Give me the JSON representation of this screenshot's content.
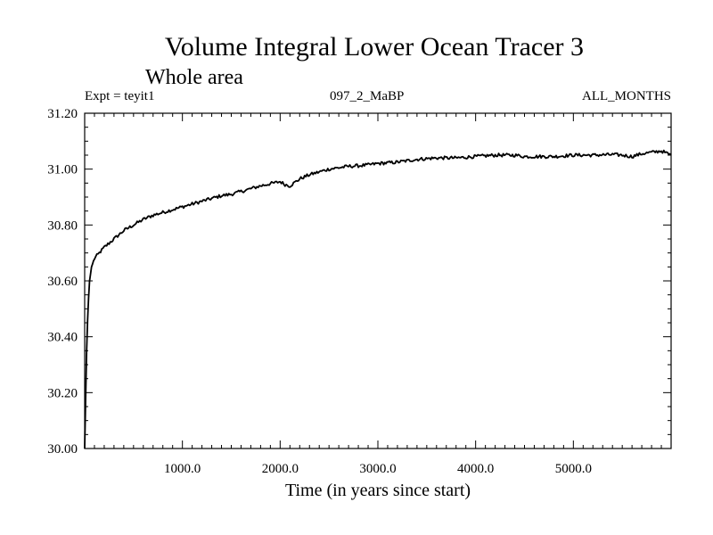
{
  "chart_data": {
    "type": "line",
    "title": "Volume Integral Lower Ocean Tracer 3",
    "subtitle": "Whole area",
    "experiment_label": "Expt = teyit1",
    "run_label": "097_2_MaBP",
    "period_label": "ALL_MONTHS",
    "xlabel": "Time (in years since start)",
    "ylabel": "",
    "xlim": [
      0,
      6000
    ],
    "ylim": [
      30.0,
      31.2
    ],
    "x_ticks": [
      1000,
      2000,
      3000,
      4000,
      5000
    ],
    "x_tick_labels": [
      "1000.0",
      "2000.0",
      "3000.0",
      "4000.0",
      "5000.0"
    ],
    "y_ticks": [
      30.0,
      30.2,
      30.4,
      30.6,
      30.8,
      31.0,
      31.2
    ],
    "y_tick_labels": [
      "30.00",
      "30.20",
      "30.40",
      "30.60",
      "30.80",
      "31.00",
      "31.20"
    ],
    "grid": false,
    "series": [
      {
        "name": "teyit1",
        "color": "#000000",
        "x": [
          0,
          10,
          20,
          30,
          40,
          50,
          70,
          100,
          150,
          200,
          300,
          400,
          500,
          600,
          700,
          800,
          900,
          1000,
          1100,
          1200,
          1300,
          1400,
          1500,
          1600,
          1700,
          1800,
          1900,
          2000,
          2050,
          2100,
          2200,
          2300,
          2400,
          2500,
          2600,
          2700,
          2800,
          2900,
          3000,
          3200,
          3400,
          3600,
          3800,
          4000,
          4200,
          4400,
          4500,
          4600,
          4800,
          5000,
          5200,
          5400,
          5500,
          5600,
          5700,
          5800,
          5900,
          6000
        ],
        "values": [
          30.0,
          30.18,
          30.35,
          30.46,
          30.54,
          30.6,
          30.65,
          30.68,
          30.7,
          30.72,
          30.75,
          30.78,
          30.8,
          30.82,
          30.835,
          30.845,
          30.855,
          30.865,
          30.875,
          30.885,
          30.895,
          30.905,
          30.91,
          30.92,
          30.93,
          30.94,
          30.948,
          30.955,
          30.945,
          30.94,
          30.965,
          30.98,
          30.99,
          31.0,
          31.005,
          31.01,
          31.012,
          31.015,
          31.02,
          31.025,
          31.035,
          31.04,
          31.04,
          31.045,
          31.05,
          31.05,
          31.045,
          31.045,
          31.045,
          31.05,
          31.05,
          31.052,
          31.05,
          31.045,
          31.055,
          31.06,
          31.065,
          31.05
        ]
      }
    ]
  }
}
